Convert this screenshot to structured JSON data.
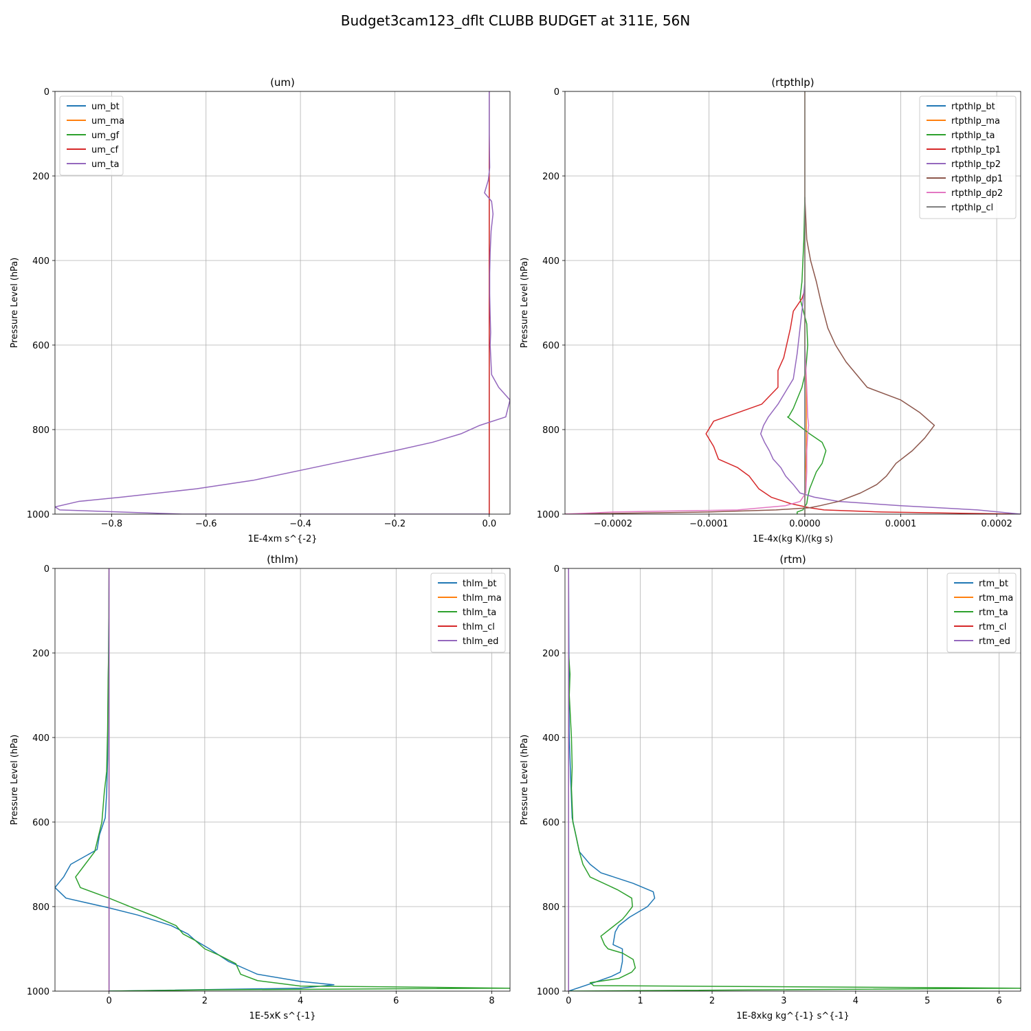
{
  "figure": {
    "title": "Budget3cam123_dflt CLUBB BUDGET at 311E, 56N"
  },
  "chart_data": [
    {
      "type": "line",
      "title": "(um)",
      "xlabel": "1E-4xm s^{-2}",
      "ylabel": "Pressure Level (hPa)",
      "xlim": [
        -0.92,
        0.044
      ],
      "ylim": [
        1000,
        0
      ],
      "xticks": [
        -0.8,
        -0.6,
        -0.4,
        -0.2,
        0.0
      ],
      "xtick_labels": [
        "−0.8",
        "−0.6",
        "−0.4",
        "−0.2",
        "0.0"
      ],
      "yticks": [
        0,
        200,
        400,
        600,
        800,
        1000
      ],
      "grid": true,
      "legend_position": "upper left",
      "series": [
        {
          "name": "um_bt",
          "color": "#1f77b4",
          "x": [
            0,
            0,
            0,
            0,
            0
          ],
          "y": [
            0,
            250,
            500,
            750,
            1000
          ]
        },
        {
          "name": "um_ma",
          "color": "#ff7f0e",
          "x": [
            0,
            0,
            0,
            0,
            0
          ],
          "y": [
            0,
            250,
            500,
            750,
            1000
          ]
        },
        {
          "name": "um_gf",
          "color": "#2ca02c",
          "x": [
            0,
            0,
            0,
            0,
            0
          ],
          "y": [
            0,
            250,
            500,
            750,
            1000
          ]
        },
        {
          "name": "um_cf",
          "color": "#d62728",
          "x": [
            0,
            0,
            0,
            0,
            0,
            0,
            0
          ],
          "y": [
            0,
            180,
            300,
            500,
            700,
            900,
            1000
          ]
        },
        {
          "name": "um_ta",
          "color": "#9467bd",
          "x": [
            0,
            0,
            0.001,
            -0.002,
            -0.01,
            0.005,
            0.008,
            0.004,
            0.002,
            0.001,
            0.001,
            0.002,
            0.003,
            0.002,
            0.005,
            0.02,
            0.044,
            0.035,
            -0.02,
            -0.06,
            -0.12,
            -0.2,
            -0.33,
            -0.5,
            -0.62,
            -0.78,
            -0.87,
            -0.92,
            -0.91,
            -0.65,
            0
          ],
          "y": [
            0,
            100,
            180,
            210,
            240,
            260,
            290,
            330,
            380,
            430,
            480,
            530,
            570,
            600,
            670,
            700,
            730,
            770,
            790,
            810,
            830,
            850,
            880,
            920,
            940,
            960,
            970,
            983,
            990,
            1000,
            1000
          ]
        }
      ]
    },
    {
      "type": "line",
      "title": "(rtpthlp)",
      "xlabel": "1E-4x(kg K)/(kg s)",
      "ylabel": "Pressure Level (hPa)",
      "xlim": [
        -0.00025,
        0.000225
      ],
      "ylim": [
        1000,
        0
      ],
      "xticks": [
        -0.0002,
        -0.0001,
        0.0,
        0.0001,
        0.0002
      ],
      "xtick_labels": [
        "−0.0002",
        "−0.0001",
        "0.0000",
        "0.0001",
        "0.0002"
      ],
      "yticks": [
        0,
        200,
        400,
        600,
        800,
        1000
      ],
      "grid": true,
      "legend_position": "upper right",
      "series": [
        {
          "name": "rtpthlp_bt",
          "color": "#1f77b4",
          "x": [
            0,
            0,
            0,
            0,
            0,
            0
          ],
          "y": [
            0,
            200,
            400,
            600,
            800,
            1000
          ]
        },
        {
          "name": "rtpthlp_ma",
          "color": "#ff7f0e",
          "x": [
            0,
            0,
            0,
            0,
            1.5e-06,
            1.5e-06,
            0,
            0
          ],
          "y": [
            0,
            200,
            400,
            600,
            700,
            850,
            950,
            1000
          ]
        },
        {
          "name": "rtpthlp_ta",
          "color": "#2ca02c",
          "x": [
            0,
            -1e-06,
            -3e-06,
            -5e-06,
            2e-06,
            3e-06,
            1e-06,
            -3e-06,
            -1.2e-05,
            -1.7e-05,
            -1.8e-05,
            5e-06,
            1.8e-05,
            2.2e-05,
            1.8e-05,
            1.2e-05,
            5e-06,
            3e-06,
            2e-06,
            -2e-06,
            -8e-06,
            -8e-06
          ],
          "y": [
            250,
            350,
            450,
            490,
            550,
            600,
            660,
            700,
            750,
            770,
            770,
            810,
            830,
            850,
            880,
            900,
            940,
            960,
            975,
            990,
            995,
            1000
          ]
        },
        {
          "name": "rtpthlp_tp1",
          "color": "#d62728",
          "x": [
            0,
            -3e-06,
            -1.2e-05,
            -1.5e-05,
            -2.2e-05,
            -2.8e-05,
            -2.8e-05,
            -4.5e-05,
            -7e-05,
            -9.5e-05,
            -0.000103,
            -9.5e-05,
            -9e-05,
            -7e-05,
            -5.8e-05,
            -4.8e-05,
            -3.5e-05,
            -1.5e-05,
            5e-06,
            2e-05,
            8e-05,
            0.00022
          ],
          "y": [
            470,
            490,
            520,
            560,
            630,
            660,
            700,
            740,
            760,
            780,
            810,
            840,
            870,
            890,
            910,
            940,
            960,
            975,
            985,
            990,
            995,
            1000
          ]
        },
        {
          "name": "rtpthlp_tp2",
          "color": "#9467bd",
          "x": [
            0,
            -2e-06,
            -5e-06,
            -8e-06,
            -1.2e-05,
            -2.8e-05,
            -3.8e-05,
            -4.3e-05,
            -4.6e-05,
            -4.2e-05,
            -3.7e-05,
            -3.3e-05,
            -2.5e-05,
            -2e-05,
            -1.2e-05,
            -5e-06,
            1e-05,
            3.5e-05,
            0.0001,
            0.00018,
            0.000225
          ],
          "y": [
            450,
            500,
            560,
            620,
            680,
            740,
            770,
            790,
            810,
            830,
            850,
            870,
            890,
            910,
            930,
            950,
            960,
            970,
            980,
            990,
            1000
          ]
        },
        {
          "name": "rtpthlp_dp1",
          "color": "#8c564b",
          "x": [
            0,
            1e-06,
            2e-06,
            6e-06,
            1.2e-05,
            1.7e-05,
            2.4e-05,
            3.2e-05,
            4.3e-05,
            6.5e-05,
            0.0001,
            0.00012,
            0.000135,
            0.000125,
            0.000112,
            9.5e-05,
            8.5e-05,
            7.5e-05,
            5.8e-05,
            3.5e-05,
            1.6e-05,
            5e-06,
            -3e-05,
            -0.0001,
            -0.00025
          ],
          "y": [
            250,
            300,
            350,
            400,
            450,
            500,
            560,
            600,
            640,
            700,
            730,
            760,
            790,
            820,
            850,
            880,
            910,
            930,
            950,
            970,
            980,
            985,
            990,
            995,
            1000
          ]
        },
        {
          "name": "rtpthlp_dp2",
          "color": "#e377c2",
          "x": [
            0,
            2e-06,
            3e-06,
            4e-06,
            3e-06,
            2e-06,
            2e-06,
            1e-06,
            -5e-06,
            -2e-05,
            -7e-05,
            -0.0002,
            -0.00025
          ],
          "y": [
            600,
            700,
            770,
            790,
            810,
            850,
            900,
            950,
            970,
            980,
            990,
            995,
            1000
          ]
        },
        {
          "name": "rtpthlp_cl",
          "color": "#7f7f7f",
          "x": [
            0,
            0,
            0,
            0,
            0,
            0
          ],
          "y": [
            0,
            200,
            400,
            600,
            800,
            1000
          ]
        }
      ]
    },
    {
      "type": "line",
      "title": "(thlm)",
      "xlabel": "1E-5xK s^{-1}",
      "ylabel": "Pressure Level (hPa)",
      "xlim": [
        -1.13,
        8.38
      ],
      "ylim": [
        1000,
        0
      ],
      "xticks": [
        0,
        2,
        4,
        6,
        8
      ],
      "xtick_labels": [
        "0",
        "2",
        "4",
        "6",
        "8"
      ],
      "yticks": [
        0,
        200,
        400,
        600,
        800,
        1000
      ],
      "grid": true,
      "legend_position": "upper right",
      "series": [
        {
          "name": "thlm_bt",
          "color": "#1f77b4",
          "x": [
            0,
            -0.01,
            -0.02,
            -0.03,
            -0.05,
            -0.08,
            -0.2,
            -0.25,
            -0.8,
            -0.95,
            -1.13,
            -0.9,
            0,
            0.6,
            1.3,
            1.65,
            1.8,
            2.1,
            2.5,
            2.9,
            3.1,
            4.0,
            4.7,
            4.0,
            0
          ],
          "y": [
            0,
            200,
            300,
            450,
            530,
            590,
            630,
            665,
            700,
            730,
            755,
            780,
            803,
            820,
            845,
            865,
            880,
            900,
            930,
            950,
            960,
            977,
            985,
            993,
            1000
          ]
        },
        {
          "name": "thlm_ma",
          "color": "#ff7f0e",
          "x": [
            0,
            0,
            0,
            0,
            0
          ],
          "y": [
            0,
            250,
            500,
            750,
            1000
          ]
        },
        {
          "name": "thlm_ta",
          "color": "#2ca02c",
          "x": [
            0,
            -0.01,
            -0.02,
            -0.03,
            -0.05,
            -0.1,
            -0.15,
            -0.3,
            -0.5,
            -0.7,
            -0.6,
            0,
            0.5,
            1.0,
            1.4,
            1.55,
            1.8,
            2.0,
            2.3,
            2.65,
            2.75,
            3.1,
            4.0,
            6.0,
            8.38,
            2.0,
            0
          ],
          "y": [
            0,
            200,
            270,
            380,
            480,
            530,
            600,
            670,
            700,
            730,
            755,
            780,
            803,
            825,
            845,
            865,
            880,
            900,
            915,
            935,
            960,
            975,
            988,
            990,
            993,
            997,
            1000
          ]
        },
        {
          "name": "thlm_cl",
          "color": "#d62728",
          "x": [
            0,
            0,
            0,
            0,
            0
          ],
          "y": [
            0,
            250,
            500,
            750,
            1000
          ]
        },
        {
          "name": "thlm_ed",
          "color": "#9467bd",
          "x": [
            0,
            0,
            0,
            0,
            0
          ],
          "y": [
            0,
            250,
            500,
            750,
            1000
          ]
        }
      ]
    },
    {
      "type": "line",
      "title": "(rtm)",
      "xlabel": "1E-8xkg kg^{-1} s^{-1}",
      "ylabel": "Pressure Level (hPa)",
      "xlim": [
        -0.05,
        6.3
      ],
      "ylim": [
        1000,
        0
      ],
      "xticks": [
        0,
        1,
        2,
        3,
        4,
        5,
        6
      ],
      "xtick_labels": [
        "0",
        "1",
        "2",
        "3",
        "4",
        "5",
        "6"
      ],
      "yticks": [
        0,
        200,
        400,
        600,
        800,
        1000
      ],
      "grid": true,
      "legend_position": "upper right",
      "series": [
        {
          "name": "rtm_bt",
          "color": "#1f77b4",
          "x": [
            0,
            0.005,
            0.01,
            0.005,
            0.01,
            0.02,
            0.03,
            0.05,
            0.1,
            0.15,
            0.3,
            0.45,
            0.9,
            1.18,
            1.2,
            1.1,
            0.85,
            0.7,
            0.65,
            0.62,
            0.75,
            0.75,
            0.72,
            0.6,
            0.35,
            0
          ],
          "y": [
            0,
            200,
            250,
            300,
            400,
            450,
            500,
            590,
            630,
            670,
            700,
            720,
            745,
            765,
            780,
            800,
            825,
            845,
            860,
            890,
            900,
            930,
            955,
            965,
            980,
            1000
          ]
        },
        {
          "name": "rtm_ma",
          "color": "#ff7f0e",
          "x": [
            0,
            0,
            0,
            0,
            0
          ],
          "y": [
            0,
            250,
            500,
            750,
            1000
          ]
        },
        {
          "name": "rtm_ta",
          "color": "#2ca02c",
          "x": [
            0,
            0.02,
            0.01,
            0.04,
            0.05,
            0.04,
            0.06,
            0.1,
            0.15,
            0.2,
            0.3,
            0.68,
            0.88,
            0.89,
            0.8,
            0.75,
            0.6,
            0.45,
            0.5,
            0.55,
            0.75,
            0.9,
            0.93,
            0.88,
            0.7,
            0.3,
            0.35,
            6.3,
            0
          ],
          "y": [
            200,
            250,
            300,
            400,
            470,
            520,
            600,
            630,
            670,
            700,
            730,
            760,
            780,
            800,
            820,
            830,
            850,
            870,
            890,
            900,
            910,
            925,
            945,
            955,
            970,
            980,
            987,
            993,
            1000
          ]
        },
        {
          "name": "rtm_cl",
          "color": "#d62728",
          "x": [
            0,
            0,
            0,
            0,
            0
          ],
          "y": [
            0,
            250,
            500,
            750,
            1000
          ]
        },
        {
          "name": "rtm_ed",
          "color": "#9467bd",
          "x": [
            0,
            0,
            0,
            0,
            0
          ],
          "y": [
            0,
            250,
            500,
            750,
            1000
          ]
        }
      ]
    }
  ]
}
